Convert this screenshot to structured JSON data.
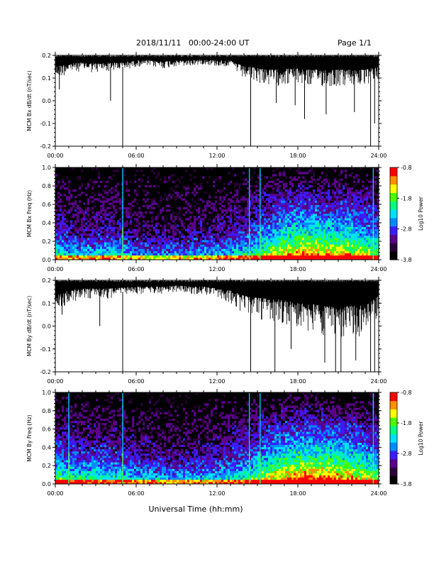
{
  "header": {
    "title": "2018/11/11   00:00-24:00 UT",
    "page": "Page 1/1"
  },
  "footer": {
    "xlabel": "Universal Time (hh:mm)"
  },
  "colorbar": {
    "label": "Log10 Power",
    "ticks": [
      "-0.8",
      "-1.8",
      "-2.8",
      "-3.8"
    ],
    "range": [
      -3.8,
      -0.8
    ],
    "colors": [
      "#000000",
      "#2b0038",
      "#5a008a",
      "#3a1cff",
      "#008cff",
      "#00e0ff",
      "#00ff80",
      "#4cff00",
      "#ffff00",
      "#ff9000",
      "#ff0000"
    ]
  },
  "chart_data": [
    {
      "type": "line",
      "ylabel": "MCM Bx dB/dt (nT/sec)",
      "ylim": [
        -0.2,
        0.2
      ],
      "yticks": [
        "0.2",
        "0.1",
        "0.0",
        "-0.1",
        "-0.2"
      ],
      "xlim": [
        "00:00",
        "24:00"
      ],
      "xticks": [
        "00:00",
        "06:00",
        "12:00",
        "18:00",
        "24:00"
      ],
      "x_hours": [
        0,
        1,
        2,
        3,
        4,
        5,
        6,
        7,
        8,
        9,
        10,
        11,
        12,
        13,
        14,
        15,
        16,
        17,
        18,
        19,
        20,
        21,
        22,
        23,
        24
      ],
      "upper": [
        0.2,
        0.2,
        0.2,
        0.2,
        0.2,
        0.2,
        0.2,
        0.2,
        0.2,
        0.2,
        0.2,
        0.2,
        0.2,
        0.2,
        0.2,
        0.2,
        0.2,
        0.2,
        0.2,
        0.2,
        0.2,
        0.2,
        0.2,
        0.2,
        0.2
      ],
      "lower": [
        0.09,
        0.12,
        0.13,
        0.12,
        0.13,
        0.13,
        0.15,
        0.15,
        0.14,
        0.15,
        0.15,
        0.16,
        0.15,
        0.15,
        0.09,
        0.08,
        0.06,
        0.07,
        0.07,
        0.06,
        0.06,
        0.06,
        0.06,
        0.06,
        0.09
      ],
      "spikes": [
        {
          "x": 0.3,
          "y": 0.05
        },
        {
          "x": 4.1,
          "y": 0.0
        },
        {
          "x": 5.0,
          "y": -0.21
        },
        {
          "x": 14.5,
          "y": -0.21
        },
        {
          "x": 16.4,
          "y": -0.01
        },
        {
          "x": 17.8,
          "y": -0.02
        },
        {
          "x": 18.5,
          "y": -0.08
        },
        {
          "x": 20.1,
          "y": -0.06
        },
        {
          "x": 22.2,
          "y": -0.05
        },
        {
          "x": 23.4,
          "y": -0.21
        },
        {
          "x": 23.7,
          "y": -0.1
        }
      ]
    },
    {
      "type": "heatmap",
      "ylabel": "MCM Bx Freq (Hz)",
      "ylim": [
        0.0,
        1.0
      ],
      "yticks": [
        "1.0",
        "0.8",
        "0.6",
        "0.4",
        "0.2",
        "0.0"
      ],
      "xlim": [
        "00:00",
        "24:00"
      ],
      "xticks": [
        "00:00",
        "06:00",
        "12:00",
        "18:00",
        "24:00"
      ],
      "activity_hours": [
        0,
        2,
        4,
        6,
        8,
        10,
        12,
        14,
        16,
        18,
        20,
        22,
        24
      ],
      "activity": [
        0.35,
        0.25,
        0.3,
        0.2,
        0.15,
        0.2,
        0.25,
        0.35,
        0.6,
        0.8,
        0.75,
        0.7,
        0.5
      ],
      "bright_lines": [
        5.0,
        14.4,
        15.2,
        23.6
      ]
    },
    {
      "type": "line",
      "ylabel": "MCM By dB/dt (nT/sec)",
      "ylim": [
        -0.2,
        0.2
      ],
      "yticks": [
        "0.2",
        "0.1",
        "0.0",
        "-0.1",
        "-0.2"
      ],
      "xlim": [
        "00:00",
        "24:00"
      ],
      "xticks": [
        "00:00",
        "06:00",
        "12:00",
        "18:00",
        "24:00"
      ],
      "x_hours": [
        0,
        1,
        2,
        3,
        4,
        5,
        6,
        7,
        8,
        9,
        10,
        11,
        12,
        13,
        14,
        15,
        16,
        17,
        18,
        19,
        20,
        21,
        22,
        23,
        24
      ],
      "upper": [
        0.2,
        0.2,
        0.2,
        0.2,
        0.2,
        0.2,
        0.2,
        0.2,
        0.2,
        0.2,
        0.2,
        0.2,
        0.2,
        0.2,
        0.2,
        0.2,
        0.2,
        0.2,
        0.2,
        0.2,
        0.2,
        0.2,
        0.2,
        0.2,
        0.2
      ],
      "lower": [
        0.06,
        0.1,
        0.12,
        0.12,
        0.12,
        0.13,
        0.14,
        0.14,
        0.14,
        0.15,
        0.14,
        0.14,
        0.12,
        0.1,
        0.05,
        0.03,
        0.02,
        0.01,
        -0.02,
        -0.03,
        -0.05,
        -0.06,
        -0.04,
        -0.05,
        0.05
      ],
      "spikes": [
        {
          "x": 0.5,
          "y": 0.05
        },
        {
          "x": 3.3,
          "y": 0.0
        },
        {
          "x": 5.0,
          "y": -0.21
        },
        {
          "x": 14.5,
          "y": -0.21
        },
        {
          "x": 16.3,
          "y": -0.2
        },
        {
          "x": 17.5,
          "y": -0.1
        },
        {
          "x": 20.0,
          "y": -0.16
        },
        {
          "x": 20.8,
          "y": -0.21
        },
        {
          "x": 21.2,
          "y": -0.21
        },
        {
          "x": 22.3,
          "y": -0.15
        },
        {
          "x": 23.4,
          "y": -0.21
        },
        {
          "x": 23.7,
          "y": -0.2
        }
      ]
    },
    {
      "type": "heatmap",
      "ylabel": "MCM By Freq (Hz)",
      "ylim": [
        0.0,
        1.0
      ],
      "yticks": [
        "1.0",
        "0.8",
        "0.6",
        "0.4",
        "0.2",
        "0.0"
      ],
      "xlim": [
        "00:00",
        "24:00"
      ],
      "xticks": [
        "00:00",
        "06:00",
        "12:00",
        "18:00",
        "24:00"
      ],
      "activity_hours": [
        0,
        2,
        4,
        6,
        8,
        10,
        12,
        14,
        16,
        18,
        20,
        22,
        24
      ],
      "activity": [
        0.5,
        0.4,
        0.4,
        0.3,
        0.25,
        0.25,
        0.3,
        0.4,
        0.7,
        0.85,
        0.85,
        0.75,
        0.55
      ],
      "bright_lines": [
        1.0,
        5.0,
        14.4,
        15.2,
        23.6
      ]
    }
  ]
}
